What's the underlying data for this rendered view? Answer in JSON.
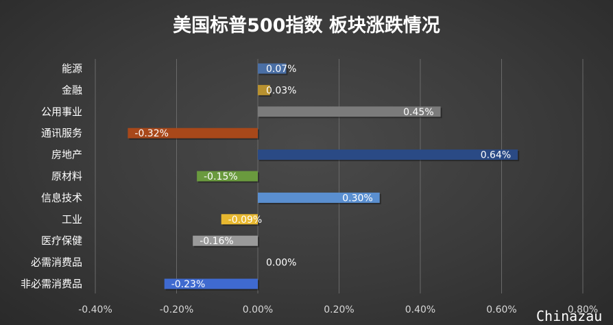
{
  "chart_data": {
    "type": "bar",
    "orientation": "horizontal",
    "title": "美国标普500指数 板块涨跌情况",
    "categories": [
      "能源",
      "金融",
      "公用事业",
      "通讯服务",
      "房地产",
      "原材料",
      "信息技术",
      "工业",
      "医疗保健",
      "必需消费品",
      "非必需消费品"
    ],
    "values": [
      0.07,
      0.03,
      0.45,
      -0.32,
      0.64,
      -0.15,
      0.3,
      -0.09,
      -0.16,
      0.0,
      -0.23
    ],
    "value_labels": [
      "0.07%",
      "0.03%",
      "0.45%",
      "-0.32%",
      "0.64%",
      "-0.15%",
      "0.30%",
      "-0.09%",
      "-0.16%",
      "0.00%",
      "-0.23%"
    ],
    "colors": [
      "#4a6fa5",
      "#b8912f",
      "#7b7b7b",
      "#a8481a",
      "#2a4a85",
      "#6a9a3e",
      "#5a8fd0",
      "#e8b830",
      "#9a9a9a",
      "#2f5597",
      "#3f6ad0"
    ],
    "xlim": [
      -0.4,
      0.8
    ],
    "xticks": [
      -0.4,
      -0.2,
      0.0,
      0.2,
      0.4,
      0.6,
      0.8
    ],
    "xtick_labels": [
      "-0.40%",
      "-0.20%",
      "0.00%",
      "0.20%",
      "0.40%",
      "0.60%",
      "0.80%"
    ],
    "grid": true,
    "legend": "none"
  },
  "watermark": "Chinazau"
}
